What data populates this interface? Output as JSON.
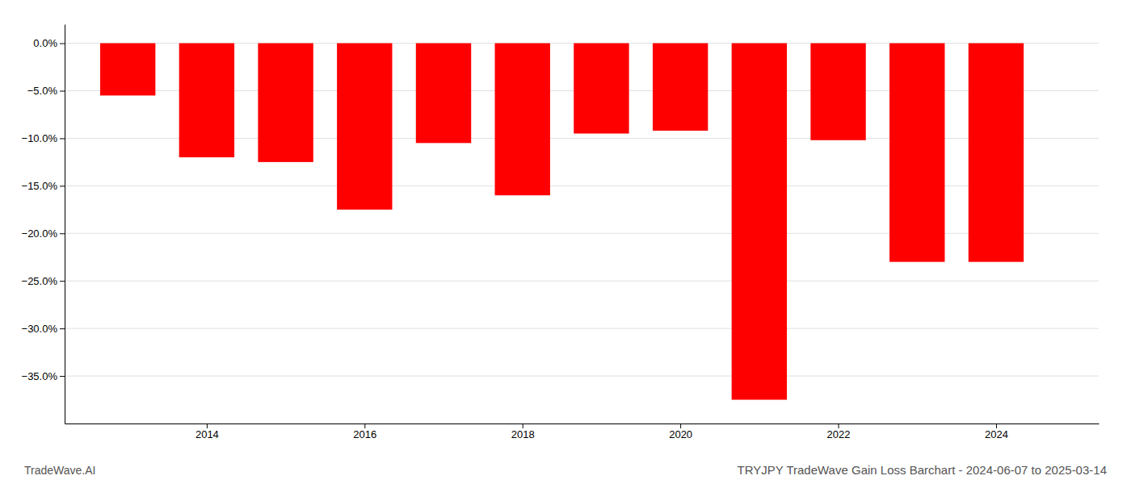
{
  "chart_data": {
    "type": "bar",
    "title": "TRYJPY TradeWave Gain Loss Barchart - 2024-06-07 to 2025-03-14",
    "annotations": [
      "TradeWave.AI"
    ],
    "x": [
      2013,
      2014,
      2015,
      2016,
      2017,
      2018,
      2019,
      2020,
      2021,
      2022,
      2023,
      2024
    ],
    "values": [
      -5.5,
      -12.0,
      -12.5,
      -17.5,
      -10.5,
      -16.0,
      -9.5,
      -9.2,
      -37.5,
      -10.2,
      -23.0,
      -23.0
    ],
    "color": "#ff0000",
    "xlim": [
      2012.2,
      2025.3
    ],
    "xticks": [
      2014,
      2016,
      2018,
      2020,
      2022,
      2024
    ],
    "ylim": [
      -40,
      2
    ],
    "yticks": [
      {
        "value": 0.0,
        "label": "0.0%"
      },
      {
        "value": -5.0,
        "label": "−5.0%"
      },
      {
        "value": -10.0,
        "label": "−10.0%"
      },
      {
        "value": -15.0,
        "label": "−15.0%"
      },
      {
        "value": -20.0,
        "label": "−20.0%"
      },
      {
        "value": -25.0,
        "label": "−25.0%"
      },
      {
        "value": -30.0,
        "label": "−30.0%"
      },
      {
        "value": -35.0,
        "label": "−35.0%"
      }
    ],
    "grid": true
  }
}
